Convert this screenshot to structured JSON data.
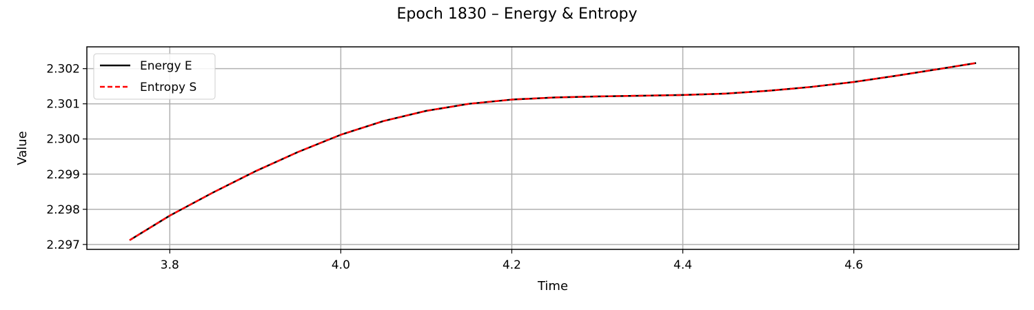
{
  "chart_data": {
    "type": "line",
    "title": "Epoch 1830 – Energy & Entropy",
    "xlabel": "Time",
    "ylabel": "Value",
    "xlim": [
      3.703,
      4.793
    ],
    "ylim": [
      2.29686,
      2.30262
    ],
    "xticks": [
      3.8,
      4.0,
      4.2,
      4.4,
      4.6
    ],
    "xtick_labels": [
      "3.8",
      "4.0",
      "4.2",
      "4.4",
      "4.6"
    ],
    "yticks": [
      2.297,
      2.298,
      2.299,
      2.3,
      2.301,
      2.302
    ],
    "ytick_labels": [
      "2.297",
      "2.298",
      "2.299",
      "2.300",
      "2.301",
      "2.302"
    ],
    "grid": true,
    "legend": "upper-left",
    "x": [
      3.753,
      3.8,
      3.85,
      3.9,
      3.95,
      4.0,
      4.05,
      4.1,
      4.15,
      4.2,
      4.25,
      4.3,
      4.35,
      4.4,
      4.45,
      4.5,
      4.55,
      4.6,
      4.65,
      4.7,
      4.743
    ],
    "series": [
      {
        "name": "Energy E",
        "color": "#000000",
        "style": "solid",
        "values": [
          2.29712,
          2.29782,
          2.29847,
          2.29908,
          2.29963,
          2.30012,
          2.30051,
          2.3008,
          2.301,
          2.30112,
          2.30118,
          2.30121,
          2.30123,
          2.30125,
          2.30129,
          2.30137,
          2.30148,
          2.30162,
          2.3018,
          2.30199,
          2.30216
        ]
      },
      {
        "name": "Entropy S",
        "color": "#ff0000",
        "style": "dashed",
        "values": [
          2.29712,
          2.29782,
          2.29847,
          2.29908,
          2.29963,
          2.30012,
          2.30051,
          2.3008,
          2.301,
          2.30112,
          2.30118,
          2.30121,
          2.30123,
          2.30125,
          2.30129,
          2.30137,
          2.30148,
          2.30162,
          2.3018,
          2.30199,
          2.30216
        ]
      }
    ]
  }
}
